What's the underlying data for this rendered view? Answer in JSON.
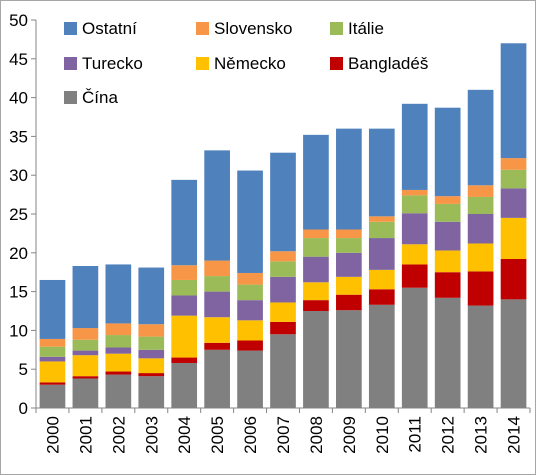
{
  "chart_data": {
    "type": "bar",
    "stacked": true,
    "title": "",
    "xlabel": "",
    "ylabel": "",
    "ylim": [
      0,
      50
    ],
    "yticks": [
      "0",
      "5",
      "10",
      "15",
      "20",
      "25",
      "30",
      "35",
      "40",
      "45",
      "50"
    ],
    "grid": false,
    "legend_position": "top-left inside",
    "categories": [
      "2000",
      "2001",
      "2002",
      "2003",
      "2004",
      "2005",
      "2006",
      "2007",
      "2008",
      "2009",
      "2010",
      "2011",
      "2012",
      "2013",
      "2014"
    ],
    "series": [
      {
        "name": "Čína",
        "color": "#808080",
        "values": [
          3.0,
          3.8,
          4.3,
          4.1,
          5.8,
          7.5,
          7.4,
          9.5,
          12.5,
          12.6,
          13.3,
          15.5,
          14.2,
          13.2,
          14.0
        ]
      },
      {
        "name": "Bangladéš",
        "color": "#c00000",
        "values": [
          0.3,
          0.3,
          0.4,
          0.4,
          0.7,
          0.9,
          1.3,
          1.6,
          1.4,
          2.0,
          2.0,
          3.0,
          3.3,
          4.4,
          5.2
        ]
      },
      {
        "name": "Německo",
        "color": "#ffc000",
        "values": [
          2.7,
          2.7,
          2.3,
          1.9,
          5.4,
          3.3,
          2.6,
          2.5,
          2.3,
          2.3,
          2.5,
          2.6,
          2.8,
          3.6,
          5.3
        ]
      },
      {
        "name": "Turecko",
        "color": "#8064a2",
        "values": [
          0.6,
          0.6,
          0.8,
          1.1,
          2.6,
          3.3,
          2.6,
          3.3,
          3.3,
          3.1,
          4.1,
          4.0,
          3.7,
          3.8,
          3.8
        ]
      },
      {
        "name": "Itálie",
        "color": "#9bbb59",
        "values": [
          1.3,
          1.4,
          1.6,
          1.7,
          2.0,
          2.0,
          2.0,
          2.0,
          2.4,
          1.9,
          2.1,
          2.3,
          2.3,
          2.2,
          2.4
        ]
      },
      {
        "name": "Slovensko",
        "color": "#f79646",
        "values": [
          1.0,
          1.5,
          1.5,
          1.6,
          1.9,
          2.0,
          1.5,
          1.3,
          1.1,
          1.1,
          0.7,
          0.7,
          1.0,
          1.5,
          1.5
        ]
      },
      {
        "name": "Ostatní",
        "color": "#4f81bd",
        "values": [
          7.6,
          8.0,
          7.6,
          7.3,
          11.0,
          14.2,
          13.2,
          12.7,
          12.2,
          13.0,
          11.3,
          11.1,
          11.4,
          12.3,
          14.8
        ]
      }
    ],
    "legend_order": [
      "Ostatní",
      "Slovensko",
      "Itálie",
      "Turecko",
      "Německo",
      "Bangladéš",
      "Čína"
    ]
  }
}
